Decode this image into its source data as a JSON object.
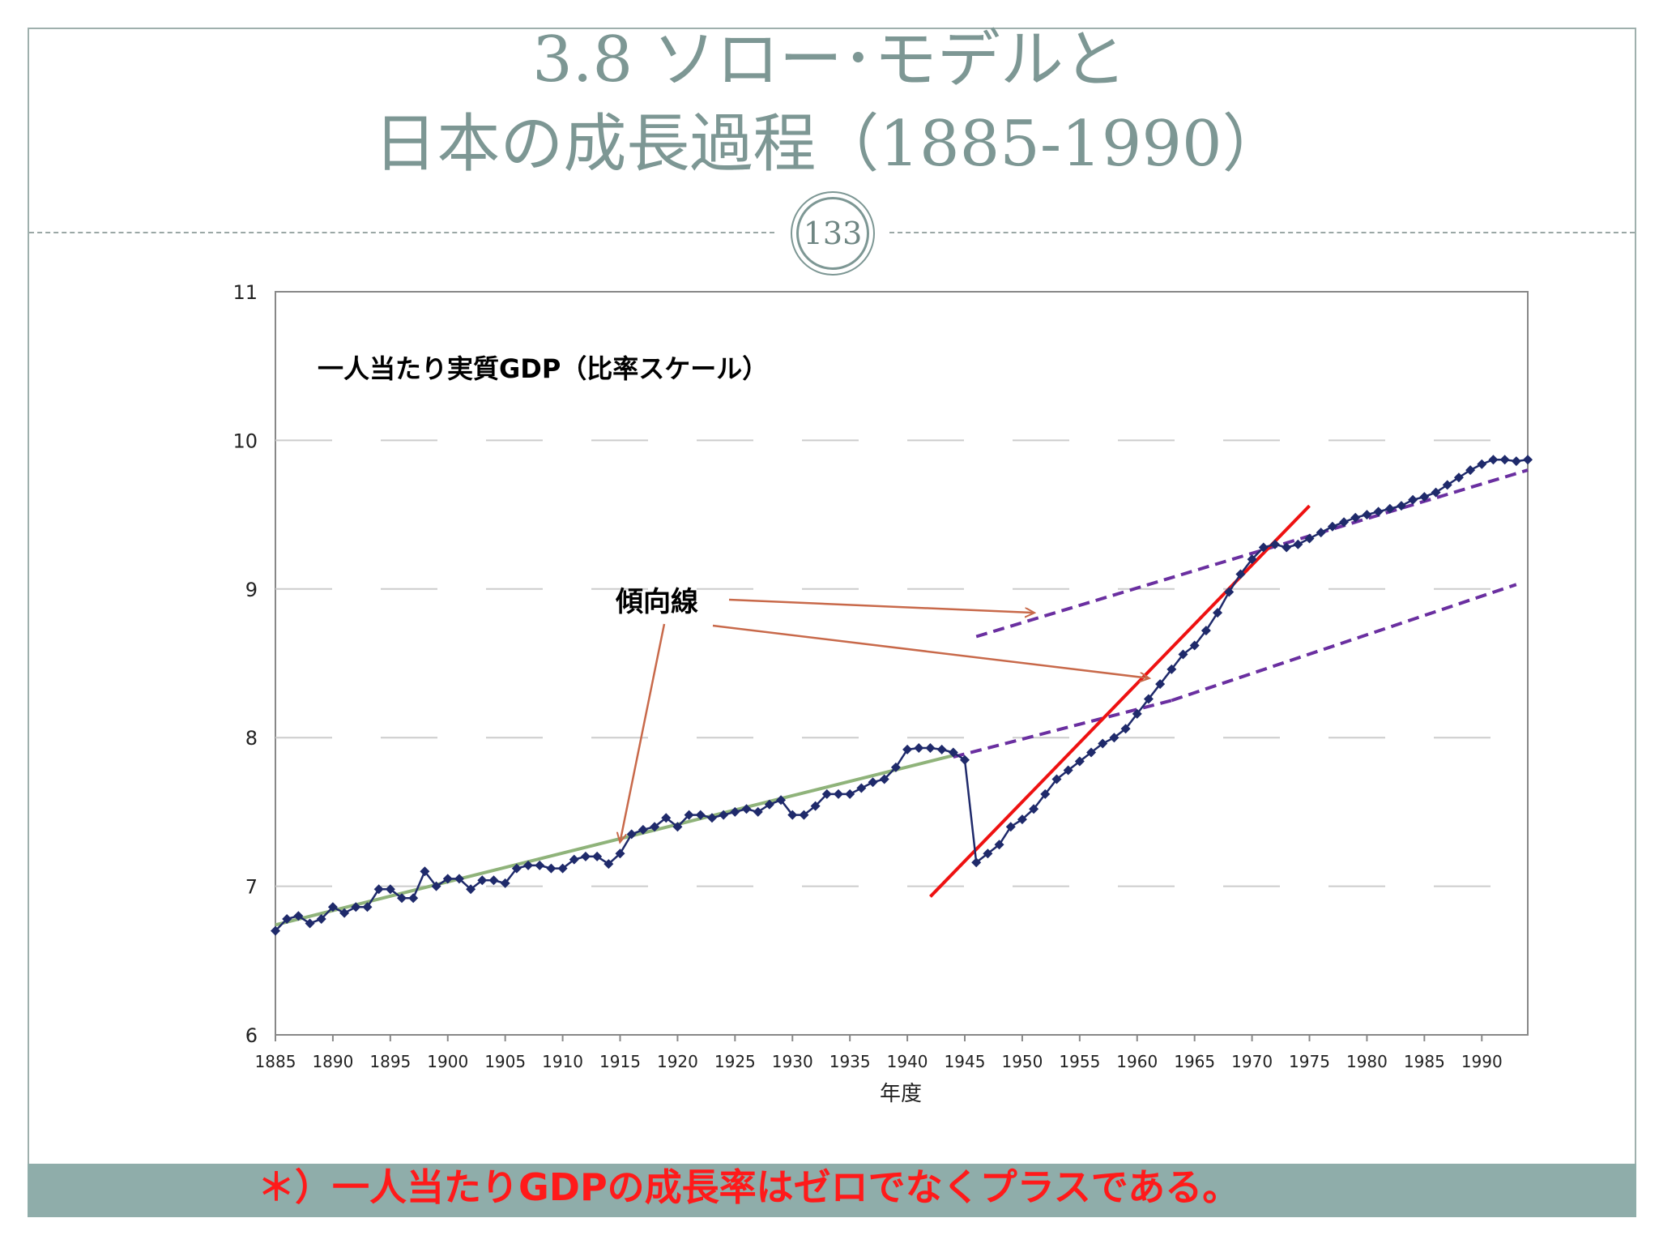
{
  "slide": {
    "title_line1": "3.8 ソロー･モデルと",
    "title_line2": "日本の成長過程（1885-1990）",
    "page_number": "133",
    "footer_note": "＊）一人当たりGDPの成長率はゼロでなくプラスである。",
    "colors": {
      "title": "#7d9794",
      "footer_bar": "#8fadaa",
      "footer_text": "#ff1a1a"
    }
  },
  "chart_data": {
    "type": "line",
    "title": "一人当たり実質GDP（比率スケール）",
    "xlabel": "年度",
    "ylabel": "",
    "xlim": [
      1885,
      1994
    ],
    "ylim": [
      6,
      11
    ],
    "grid": "horizontal-dashed",
    "x_ticks": [
      "1885",
      "1890",
      "1895",
      "1900",
      "1905",
      "1910",
      "1915",
      "1920",
      "1925",
      "1930",
      "1935",
      "1940",
      "1945",
      "1950",
      "1955",
      "1960",
      "1965",
      "1970",
      "1975",
      "1980",
      "1985",
      "1990"
    ],
    "y_ticks": [
      "6",
      "7",
      "8",
      "9",
      "10",
      "11"
    ],
    "series": [
      {
        "name": "",
        "color": "#1f2a6b",
        "x": [
          1885,
          1886,
          1887,
          1888,
          1889,
          1890,
          1891,
          1892,
          1893,
          1894,
          1895,
          1896,
          1897,
          1898,
          1899,
          1900,
          1901,
          1902,
          1903,
          1904,
          1905,
          1906,
          1907,
          1908,
          1909,
          1910,
          1911,
          1912,
          1913,
          1914,
          1915,
          1916,
          1917,
          1918,
          1919,
          1920,
          1921,
          1922,
          1923,
          1924,
          1925,
          1926,
          1927,
          1928,
          1929,
          1930,
          1931,
          1932,
          1933,
          1934,
          1935,
          1936,
          1937,
          1938,
          1939,
          1940,
          1941,
          1942,
          1943,
          1944,
          1945,
          1946,
          1947,
          1948,
          1949,
          1950,
          1951,
          1952,
          1953,
          1954,
          1955,
          1956,
          1957,
          1958,
          1959,
          1960,
          1961,
          1962,
          1963,
          1964,
          1965,
          1966,
          1967,
          1968,
          1969,
          1970,
          1971,
          1972,
          1973,
          1974,
          1975,
          1976,
          1977,
          1978,
          1979,
          1980,
          1981,
          1982,
          1983,
          1984,
          1985,
          1986,
          1987,
          1988,
          1989,
          1990,
          1991,
          1992,
          1993,
          1994
        ],
        "y": [
          6.7,
          6.78,
          6.8,
          6.75,
          6.78,
          6.86,
          6.82,
          6.86,
          6.86,
          6.98,
          6.98,
          6.92,
          6.92,
          7.1,
          7.0,
          7.05,
          7.05,
          6.98,
          7.04,
          7.04,
          7.02,
          7.12,
          7.14,
          7.14,
          7.12,
          7.12,
          7.18,
          7.2,
          7.2,
          7.15,
          7.22,
          7.35,
          7.38,
          7.4,
          7.46,
          7.4,
          7.48,
          7.48,
          7.46,
          7.48,
          7.5,
          7.52,
          7.5,
          7.55,
          7.58,
          7.48,
          7.48,
          7.54,
          7.62,
          7.62,
          7.62,
          7.66,
          7.7,
          7.72,
          7.8,
          7.92,
          7.93,
          7.93,
          7.92,
          7.9,
          7.85,
          7.16,
          7.22,
          7.28,
          7.4,
          7.45,
          7.52,
          7.62,
          7.72,
          7.78,
          7.84,
          7.9,
          7.96,
          8.0,
          8.06,
          8.16,
          8.26,
          8.36,
          8.46,
          8.56,
          8.62,
          8.72,
          8.84,
          8.98,
          9.1,
          9.2,
          9.28,
          9.3,
          9.28,
          9.3,
          9.34,
          9.38,
          9.42,
          9.45,
          9.48,
          9.5,
          9.52,
          9.54,
          9.56,
          9.6,
          9.62,
          9.65,
          9.7,
          9.75,
          9.8,
          9.84,
          9.87,
          9.87,
          9.86,
          9.87
        ]
      }
    ],
    "trend_lines": [
      {
        "color": "#8fb37a",
        "style": "solid",
        "x": [
          1885,
          1944
        ],
        "y": [
          6.74,
          7.88
        ]
      },
      {
        "color": "#6a2fa0",
        "style": "dashed",
        "x": [
          1944,
          1963
        ],
        "y": [
          7.87,
          8.25
        ]
      },
      {
        "color": "#6a2fa0",
        "style": "dashed",
        "x": [
          1963,
          1993
        ],
        "y": [
          8.25,
          9.03
        ]
      },
      {
        "color": "#6a2fa0",
        "style": "dashed",
        "x": [
          1946,
          1994
        ],
        "y": [
          8.68,
          9.8
        ]
      },
      {
        "color": "#ee1111",
        "style": "solid",
        "x": [
          1942,
          1975
        ],
        "y": [
          6.93,
          9.56
        ]
      }
    ],
    "annotation": {
      "label": "傾向線",
      "arrow_color": "#c8694a",
      "targets": [
        {
          "x": 1915,
          "y": 7.3
        },
        {
          "x": 1951,
          "y": 8.84
        },
        {
          "x": 1961,
          "y": 8.4
        }
      ]
    }
  }
}
